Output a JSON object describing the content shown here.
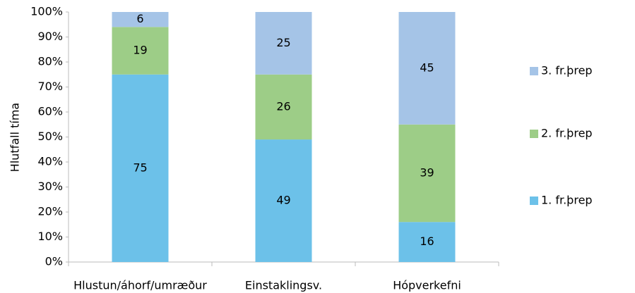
{
  "chart_data": {
    "type": "stacked_bar",
    "categories": [
      "Hlustun/áhorf/umræður",
      "Einstaklingsv.",
      "Hópverkefni"
    ],
    "series": [
      {
        "name": "1. fr.þrep",
        "color": "#6cc1e9",
        "values": [
          75,
          49,
          16
        ]
      },
      {
        "name": "2. fr.þrep",
        "color": "#9dcd87",
        "values": [
          19,
          26,
          39
        ]
      },
      {
        "name": "3. fr.þrep",
        "color": "#a5c4e7",
        "values": [
          6,
          25,
          45
        ]
      }
    ],
    "ylabel": "Hlutfall tíma",
    "ylim": [
      0,
      100
    ],
    "yticks": [
      {
        "value": 0,
        "label": "0%"
      },
      {
        "value": 10,
        "label": "10%"
      },
      {
        "value": 20,
        "label": "20%"
      },
      {
        "value": 30,
        "label": "30%"
      },
      {
        "value": 40,
        "label": "40%"
      },
      {
        "value": 50,
        "label": "50%"
      },
      {
        "value": 60,
        "label": "60%"
      },
      {
        "value": 70,
        "label": "70%"
      },
      {
        "value": 80,
        "label": "80%"
      },
      {
        "value": 90,
        "label": "90%"
      },
      {
        "value": 100,
        "label": "100%"
      }
    ],
    "legend": "right"
  }
}
